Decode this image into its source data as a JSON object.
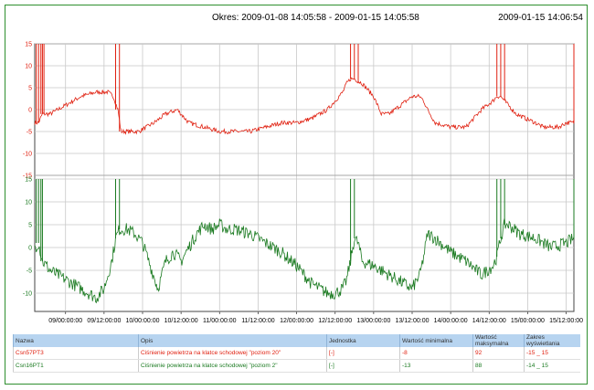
{
  "header": {
    "period": "Okres: 2009-01-08 14:05:58 - 2009-01-15 14:05:58",
    "now": "2009-01-15 14:06:54"
  },
  "table": {
    "headers": [
      "Nazwa",
      "Opis",
      "Jednostka",
      "Wartość minimalna",
      "Wartość maksymalna",
      "Zakres wyświetlania"
    ],
    "rows": [
      {
        "name": "Csn57PT3",
        "desc": "Ciśnienie powietrza na klatce schodowej \"poziom 20\"",
        "unit": "[-]",
        "min": "-8",
        "max": "92",
        "range": "-15 _ 15"
      },
      {
        "name": "Csn16PT1",
        "desc": "Ciśnienie powietrza na klatce schodowej \"poziom 2\"",
        "unit": "[-]",
        "min": "-13",
        "max": "88",
        "range": "-14 _ 15"
      }
    ]
  },
  "chart_data": [
    {
      "type": "line",
      "series": [
        {
          "name": "Csn57PT3",
          "color": "#e02010",
          "x": [
            0,
            0.05,
            0.1,
            0.2,
            0.4,
            0.6,
            0.8,
            0.95,
            1.02,
            1.08,
            1.12,
            1.2,
            1.35,
            1.45,
            1.55,
            1.7,
            1.85,
            2.0,
            2.2,
            2.4,
            2.6,
            2.8,
            3.0,
            3.2,
            3.4,
            3.6,
            3.8,
            3.9,
            4.0,
            4.05,
            4.1,
            4.15,
            4.25,
            4.4,
            4.5,
            4.6,
            4.75,
            4.9,
            5.0,
            5.05,
            5.1,
            5.2,
            5.4,
            5.6,
            5.8,
            5.95,
            6.0,
            6.05,
            6.1,
            6.15,
            6.25,
            6.5,
            6.6,
            6.7,
            6.8,
            6.9,
            7.0
          ],
          "values": [
            -3,
            -3,
            -1,
            -1,
            1,
            3,
            4,
            4,
            3,
            0,
            -5,
            -5,
            -5,
            -4,
            -3,
            -1,
            0,
            -3,
            -4,
            -5,
            -5,
            -5,
            -4,
            -3,
            -3,
            -2,
            0,
            2,
            4,
            6,
            7,
            7,
            6,
            3,
            -1,
            -1,
            1,
            3,
            3,
            2,
            0,
            -3,
            -4,
            -4,
            0,
            2,
            3,
            3,
            2,
            1,
            -1,
            -3,
            -4,
            -4,
            -4,
            -3,
            -3
          ],
          "spikes": [
            0.02,
            0.05,
            0.08,
            0.1,
            0.12,
            1.05,
            1.1,
            4.1,
            4.15,
            4.2,
            6.0,
            6.05,
            6.1,
            7.0
          ]
        }
      ],
      "yticks": [
        15,
        10,
        5,
        0,
        -5,
        -10,
        -15
      ],
      "ylim": [
        -15,
        15
      ]
    },
    {
      "type": "line",
      "series": [
        {
          "name": "Csn16PT1",
          "color": "#1a7a20",
          "x": [
            0,
            0.05,
            0.1,
            0.2,
            0.4,
            0.6,
            0.8,
            0.9,
            0.95,
            1.0,
            1.05,
            1.1,
            1.2,
            1.3,
            1.4,
            1.5,
            1.6,
            1.7,
            1.8,
            1.9,
            2.0,
            2.1,
            2.2,
            2.3,
            2.4,
            2.5,
            2.6,
            2.8,
            3.0,
            3.2,
            3.4,
            3.6,
            3.8,
            3.9,
            4.0,
            4.05,
            4.1,
            4.15,
            4.2,
            4.25,
            4.4,
            4.6,
            4.8,
            4.9,
            5.0,
            5.05,
            5.1,
            5.2,
            5.4,
            5.6,
            5.8,
            5.95,
            6.0,
            6.05,
            6.1,
            6.15,
            6.3,
            6.5,
            6.7,
            6.9,
            7.0
          ],
          "values": [
            0,
            1,
            -3,
            -5,
            -7,
            -9,
            -11,
            -9,
            -6,
            -3,
            2,
            4,
            4,
            3,
            1,
            -4,
            -9,
            -3,
            -1,
            -3,
            0,
            3,
            5,
            4,
            5,
            4,
            4,
            3,
            1,
            -1,
            -4,
            -8,
            -10,
            -10,
            -9,
            -7,
            -3,
            2,
            1,
            -3,
            -4,
            -6,
            -8,
            -9,
            -6,
            -2,
            3,
            2,
            -1,
            -3,
            -6,
            -4,
            -2,
            2,
            5,
            5,
            3,
            2,
            0,
            1,
            2
          ],
          "spikes": [
            0.02,
            0.05,
            0.08,
            0.1,
            1.05,
            1.1,
            4.1,
            4.15,
            6.0,
            6.05,
            6.1,
            7.0
          ]
        }
      ],
      "yticks": [
        15,
        10,
        5,
        0,
        -5,
        -10
      ],
      "ylim": [
        -14,
        15
      ]
    }
  ],
  "x_axis": {
    "ticks": [
      "09/00:00:00",
      "09/12:00:00",
      "10/00:00:00",
      "10/12:00:00",
      "11/00:00:00",
      "11/12:00:00",
      "12/00:00:00",
      "12/12:00:00",
      "13/00:00:00",
      "13/12:00:00",
      "14/00:00:00",
      "14/12:00:00",
      "15/00:00:00",
      "15/12:00:00"
    ],
    "first_tick_day": 0.4,
    "days": 7
  }
}
